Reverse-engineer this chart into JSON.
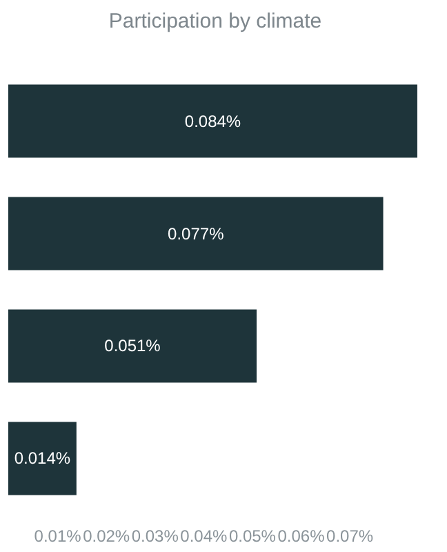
{
  "chart_data": {
    "type": "bar",
    "orientation": "horizontal",
    "title": "Participation by climate",
    "categories": [
      null,
      null,
      null,
      null
    ],
    "values": [
      0.084,
      0.077,
      0.051,
      0.014
    ],
    "value_labels": [
      "0.084%",
      "0.077%",
      "0.051%",
      "0.014%"
    ],
    "color": "#1e343a",
    "xlim": [
      0,
      0.085
    ],
    "xticks": [
      {
        "value": 0.01,
        "label": "0.01%"
      },
      {
        "value": 0.02,
        "label": "0.02%"
      },
      {
        "value": 0.03,
        "label": "0.03%"
      },
      {
        "value": 0.04,
        "label": "0.04%"
      },
      {
        "value": 0.05,
        "label": "0.05%"
      },
      {
        "value": 0.06,
        "label": "0.06%"
      },
      {
        "value": 0.07,
        "label": "0.07%"
      }
    ],
    "grid": false
  }
}
